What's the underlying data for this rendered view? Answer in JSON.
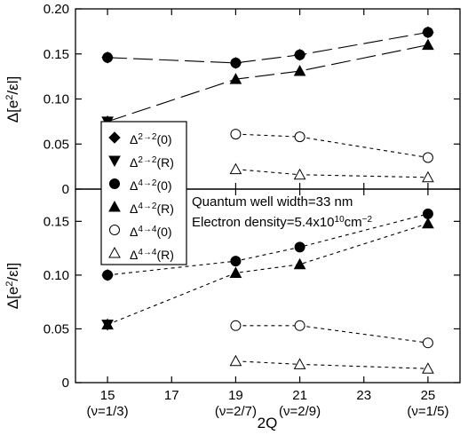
{
  "chart_data": [
    {
      "type": "scatter",
      "panel": "top",
      "ylabel": "Δ[e²/εl]",
      "xlim": [
        14,
        26
      ],
      "ylim": [
        0,
        0.2
      ],
      "yticks": [
        "0",
        "0.05",
        "0.10",
        "0.15",
        "0.20"
      ],
      "ytick_values": [
        0,
        0.05,
        0.1,
        0.15,
        0.2
      ],
      "xticks_values": [
        15,
        17,
        19,
        21,
        23,
        25
      ],
      "grid": false,
      "legend_position": "left",
      "series": [
        {
          "name": "Δ2→2(0)",
          "label_base": "Δ",
          "label_sup": "2→2",
          "label_suffix": "(0)",
          "marker": "diamond-filled",
          "line": "none",
          "x": [
            15,
            19,
            21,
            25
          ],
          "y": [
            0.146,
            0.14,
            0.149,
            0.174
          ]
        },
        {
          "name": "Δ2→2(R)",
          "label_base": "Δ",
          "label_sup": "2→2",
          "label_suffix": "(R)",
          "marker": "triangle-down-filled",
          "line": "none",
          "x": [
            15
          ],
          "y": [
            0.075
          ]
        },
        {
          "name": "Δ4→2(0)",
          "label_base": "Δ",
          "label_sup": "4→2",
          "label_suffix": "(0)",
          "marker": "circle-filled",
          "line": "long-dash",
          "x": [
            15,
            19,
            21,
            25
          ],
          "y": [
            0.146,
            0.14,
            0.149,
            0.174
          ]
        },
        {
          "name": "Δ4→2(R)",
          "label_base": "Δ",
          "label_sup": "4→2",
          "label_suffix": "(R)",
          "marker": "triangle-up-filled",
          "line": "long-dash",
          "x": [
            15,
            19,
            21,
            25
          ],
          "y": [
            0.075,
            0.122,
            0.131,
            0.16
          ]
        },
        {
          "name": "Δ4→4(0)",
          "label_base": "Δ",
          "label_sup": "4→4",
          "label_suffix": "(0)",
          "marker": "circle-open",
          "line": "short-dash",
          "x": [
            19,
            21,
            25
          ],
          "y": [
            0.061,
            0.058,
            0.035
          ]
        },
        {
          "name": "Δ4→4(R)",
          "label_base": "Δ",
          "label_sup": "4→4",
          "label_suffix": "(R)",
          "marker": "triangle-up-open",
          "line": "short-dash",
          "x": [
            19,
            21,
            25
          ],
          "y": [
            0.022,
            0.016,
            0.013
          ]
        }
      ]
    },
    {
      "type": "scatter",
      "panel": "bottom",
      "xlabel": "2Q",
      "ylabel": "Δ[e²/εl]",
      "xlim": [
        14,
        26
      ],
      "ylim": [
        0,
        0.18
      ],
      "yticks": [
        "0",
        "0.05",
        "0.10",
        "0.15"
      ],
      "ytick_values": [
        0,
        0.05,
        0.1,
        0.15
      ],
      "xticks": [
        "15",
        "17",
        "19",
        "21",
        "23",
        "25"
      ],
      "xtick_values": [
        15,
        17,
        19,
        21,
        23,
        25
      ],
      "xtick_sublabels": {
        "15": "(ν=1/3)",
        "19": "(ν=2/7)",
        "21": "(ν=2/9)",
        "25": "(ν=1/5)"
      },
      "grid": false,
      "series": [
        {
          "marker": "diamond-filled",
          "line": "none",
          "x": [
            15
          ],
          "y": [
            0.1
          ]
        },
        {
          "marker": "triangle-down-filled",
          "line": "none",
          "x": [
            15
          ],
          "y": [
            0.054
          ]
        },
        {
          "marker": "circle-filled",
          "line": "short-dash",
          "x": [
            15,
            19,
            21,
            25
          ],
          "y": [
            0.1,
            0.113,
            0.126,
            0.157
          ]
        },
        {
          "marker": "triangle-up-filled",
          "line": "short-dash",
          "x": [
            15,
            19,
            21,
            25
          ],
          "y": [
            0.054,
            0.102,
            0.11,
            0.148
          ]
        },
        {
          "marker": "circle-open",
          "line": "short-dash",
          "x": [
            19,
            21,
            25
          ],
          "y": [
            0.053,
            0.053,
            0.037
          ]
        },
        {
          "marker": "triangle-up-open",
          "line": "short-dash",
          "x": [
            19,
            21,
            25
          ],
          "y": [
            0.02,
            0.017,
            0.013
          ]
        }
      ],
      "annotations": [
        "Quantum well width=33 nm"
      ],
      "annotation_density": {
        "prefix": "Electron density=5.4x10",
        "sup1": "10",
        "mid": "cm",
        "sup2": "−2"
      }
    }
  ]
}
